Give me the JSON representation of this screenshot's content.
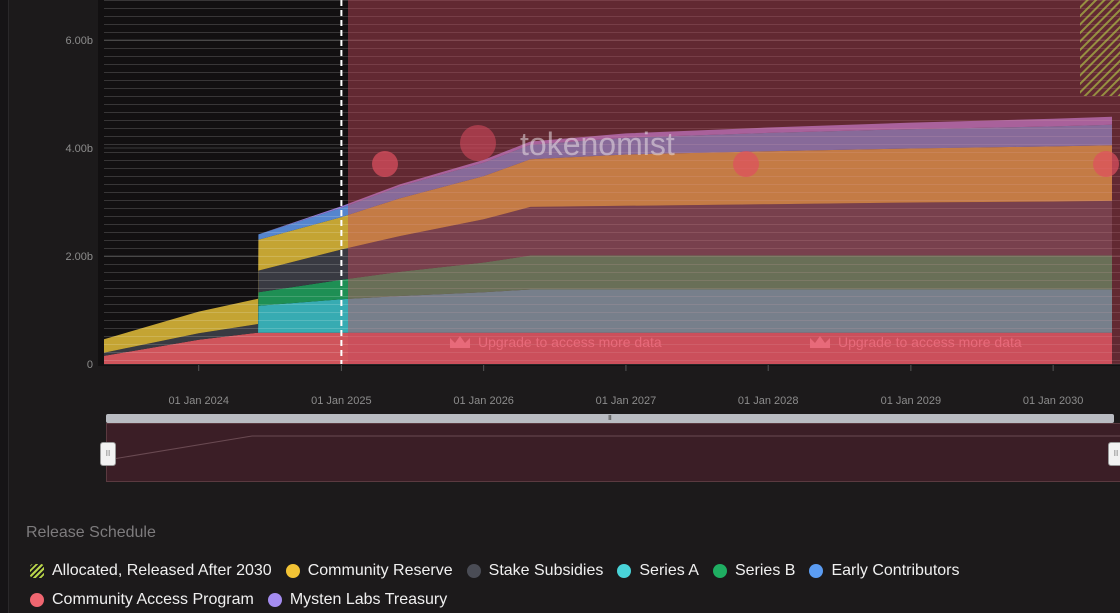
{
  "chart_data": {
    "type": "area",
    "stacked": true,
    "title": "",
    "xlabel": "",
    "ylabel": "",
    "x_ticks": [
      "01 Jan 2024",
      "01 Jan 2025",
      "01 Jan 2026",
      "01 Jan 2027",
      "01 Jan 2028",
      "01 Jan 2029",
      "01 Jan 2030"
    ],
    "y_ticks": [
      "0",
      "2.00b",
      "4.00b",
      "6.00b"
    ],
    "ylim": [
      0,
      6600000000
    ],
    "x_dates": [
      "2023-05-03",
      "2024-01-01",
      "2024-06-01",
      "2024-06-02",
      "2025-01-01",
      "2025-06-01",
      "2026-01-01",
      "2026-05-01",
      "2027-01-01",
      "2028-01-01",
      "2029-01-01",
      "2030-01-01",
      "2030-06-01"
    ],
    "series": [
      {
        "name": "Community Access Program",
        "color": "#e05a62",
        "values": [
          0.15,
          0.45,
          0.58,
          0.58,
          0.58,
          0.58,
          0.58,
          0.58,
          0.58,
          0.58,
          0.58,
          0.58,
          0.58
        ]
      },
      {
        "name": "Series A",
        "color": "#3bb8c0",
        "values": [
          0.0,
          0.0,
          0.0,
          0.5,
          0.62,
          0.68,
          0.75,
          0.8,
          0.8,
          0.8,
          0.8,
          0.8,
          0.8
        ]
      },
      {
        "name": "Series B",
        "color": "#1f9a5a",
        "values": [
          0.0,
          0.0,
          0.0,
          0.25,
          0.36,
          0.45,
          0.55,
          0.63,
          0.63,
          0.63,
          0.63,
          0.63,
          0.63
        ]
      },
      {
        "name": "Stake Subsidies",
        "color": "#3d3e46",
        "values": [
          0.06,
          0.12,
          0.16,
          0.4,
          0.56,
          0.66,
          0.8,
          0.9,
          0.92,
          0.95,
          0.98,
          1.0,
          1.01
        ]
      },
      {
        "name": "Community Reserve",
        "color": "#d4b136",
        "values": [
          0.25,
          0.4,
          0.47,
          0.57,
          0.6,
          0.7,
          0.8,
          0.88,
          0.95,
          0.98,
          1.0,
          1.02,
          1.03
        ]
      },
      {
        "name": "Early Contributors",
        "color": "#5b8fdd",
        "values": [
          0.0,
          0.0,
          0.0,
          0.1,
          0.17,
          0.22,
          0.25,
          0.27,
          0.31,
          0.34,
          0.36,
          0.37,
          0.38
        ]
      },
      {
        "name": "Mysten Labs Treasury",
        "color": "#9d7fe0",
        "values": [
          0.0,
          0.0,
          0.0,
          0.0,
          0.03,
          0.04,
          0.05,
          0.06,
          0.08,
          0.1,
          0.12,
          0.14,
          0.15
        ]
      },
      {
        "name": "Allocated, Released After 2030",
        "color": "#b8d44a",
        "pattern": "hatched",
        "values": [
          0,
          0,
          0,
          0,
          0,
          0,
          0,
          0,
          0,
          0,
          0,
          0,
          0
        ]
      }
    ],
    "units": "billions",
    "current_date_marker": "2025-01-01",
    "grid": true,
    "legend_position": "bottom-left"
  },
  "watermark": "tokenomist",
  "overlay": {
    "upgrade_text": "Upgrade to access more data"
  },
  "legend": {
    "title": "Release Schedule",
    "items": [
      {
        "label": "Allocated, Released After 2030",
        "color": "#b8d44a",
        "hatched": true
      },
      {
        "label": "Community Reserve",
        "color": "#f2c335"
      },
      {
        "label": "Stake Subsidies",
        "color": "#4a4c55"
      },
      {
        "label": "Series A",
        "color": "#49d3d8"
      },
      {
        "label": "Series B",
        "color": "#1fae62"
      },
      {
        "label": "Early Contributors",
        "color": "#5b9cf2"
      },
      {
        "label": "Community Access Program",
        "color": "#ef6670"
      },
      {
        "label": "Mysten Labs Treasury",
        "color": "#a48cf0"
      }
    ]
  },
  "navigator": {
    "grip": "III",
    "handle_left": "II",
    "handle_right": "II"
  }
}
